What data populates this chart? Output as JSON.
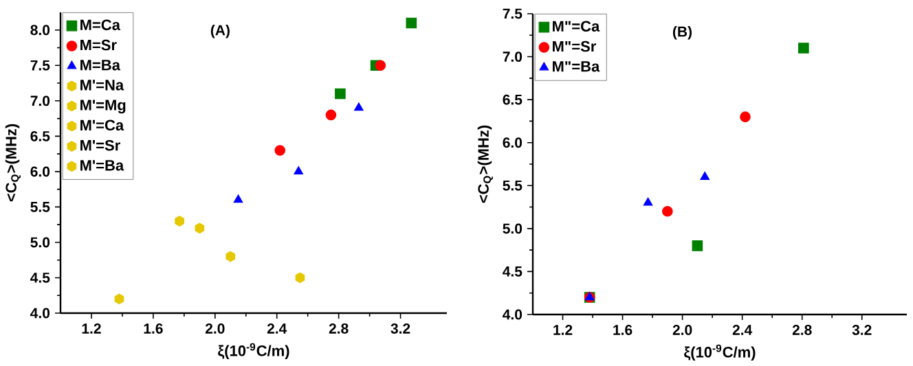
{
  "chart_data": [
    {
      "type": "scatter",
      "xlabel": "ξ(10$^{-9}$C/m)",
      "ylabel": "<C$_{Q}$>(MHz)",
      "annotations": [
        "(A)"
      ],
      "xlim": [
        1.0,
        3.5
      ],
      "ylim": [
        4.0,
        8.25
      ],
      "xticks": [
        1.2,
        1.6,
        {
          "value": 2,
          "label": "2.0"
        },
        2.4,
        2.8,
        3.2
      ],
      "yticks": [
        {
          "value": 4,
          "label": "4.0"
        },
        4.5,
        {
          "value": 5,
          "label": "5.0"
        },
        5.5,
        {
          "value": 6,
          "label": "6.0"
        },
        6.5,
        {
          "value": 7,
          "label": "7.0"
        },
        7.5,
        {
          "value": 8,
          "label": "8.0"
        }
      ],
      "legend": "top left",
      "grid": false,
      "series": [
        {
          "name": "M=Ca",
          "color": "#008000",
          "marker": "square",
          "x": [
            2.81,
            3.04,
            3.27
          ],
          "values": [
            7.1,
            7.5,
            8.1
          ]
        },
        {
          "name": "M=Sr",
          "color": "#ff0000",
          "marker": "circle",
          "x": [
            2.42,
            2.75,
            3.07
          ],
          "values": [
            6.3,
            6.8,
            7.5
          ]
        },
        {
          "name": "M=Ba",
          "color": "#0000ff",
          "marker": "triangle",
          "x": [
            2.15,
            2.54,
            2.93
          ],
          "values": [
            5.6,
            6.0,
            6.9
          ]
        },
        {
          "name": "M'=Na",
          "color": "#e6c800",
          "x": [
            1.38
          ],
          "values": [
            4.2
          ]
        },
        {
          "name": "M'=Mg",
          "color": "#e6c800",
          "x": [
            2.55
          ],
          "values": [
            4.5
          ]
        },
        {
          "name": "M'=Ca",
          "color": "#e6c800",
          "x": [
            2.1
          ],
          "values": [
            4.8
          ]
        },
        {
          "name": "M'=Sr",
          "color": "#e6c800",
          "x": [
            1.9
          ],
          "values": [
            5.2
          ]
        },
        {
          "name": "M'=Ba",
          "color": "#e6c800",
          "x": [
            1.77
          ],
          "values": [
            5.3
          ]
        }
      ]
    },
    {
      "type": "scatter",
      "xlabel": "ξ(10$^{-9}$C/m)",
      "ylabel": "<C$_{Q}$>(MHz)",
      "annotations": [
        "(B)"
      ],
      "xlim": [
        1.0,
        3.5
      ],
      "ylim": [
        4.0,
        7.5
      ],
      "xticks": [
        1.2,
        1.6,
        {
          "value": 2,
          "label": "2.0"
        },
        2.4,
        2.8,
        3.2
      ],
      "yticks": [
        {
          "value": 4,
          "label": "4.0"
        },
        4.5,
        {
          "value": 5,
          "label": "5.0"
        },
        5.5,
        {
          "value": 6,
          "label": "6.0"
        },
        6.5,
        {
          "value": 7,
          "label": "7.0"
        },
        7.5
      ],
      "legend": "top left",
      "grid": false,
      "series": [
        {
          "name": "M\"=Ca",
          "color": "#008000",
          "marker": "square",
          "x": [
            1.38,
            2.1,
            2.81
          ],
          "values": [
            4.2,
            4.8,
            7.1
          ]
        },
        {
          "name": "M\"=Sr",
          "color": "#ff0000",
          "marker": "circle",
          "x": [
            1.38,
            1.9,
            2.42
          ],
          "values": [
            4.2,
            5.2,
            6.3
          ]
        },
        {
          "name": "M\"=Ba",
          "color": "#0000ff",
          "marker": "triangle",
          "x": [
            1.38,
            1.77,
            2.15
          ],
          "values": [
            4.2,
            5.3,
            5.6
          ]
        }
      ]
    }
  ]
}
